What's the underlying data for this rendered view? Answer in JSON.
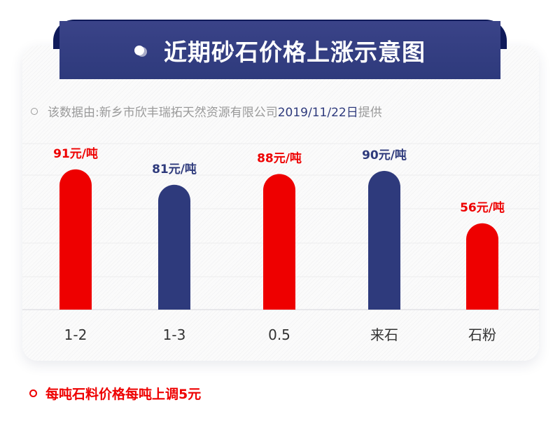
{
  "header": {
    "title": "近期砂石价格上涨示意图"
  },
  "source": {
    "prefix": "该数据由:新乡市欣丰瑞拓天然资源有限公司",
    "date": "2019/11/22日",
    "suffix": "提供"
  },
  "footer": {
    "note": "每吨石料价格每吨上调5元"
  },
  "colors": {
    "red": "#ee0000",
    "navy": "#2e3a7c"
  },
  "chart_data": {
    "type": "bar",
    "categories": [
      "1-2",
      "1-3",
      "0.5",
      "来石",
      "石粉"
    ],
    "values": [
      91,
      81,
      88,
      90,
      56
    ],
    "unit": "元/吨",
    "data_labels": [
      "91元/吨",
      "81元/吨",
      "88元/吨",
      "90元/吨",
      "56元/吨"
    ],
    "bar_colors": [
      "#ee0000",
      "#2e3a7c",
      "#ee0000",
      "#2e3a7c",
      "#ee0000"
    ],
    "grid": true
  }
}
